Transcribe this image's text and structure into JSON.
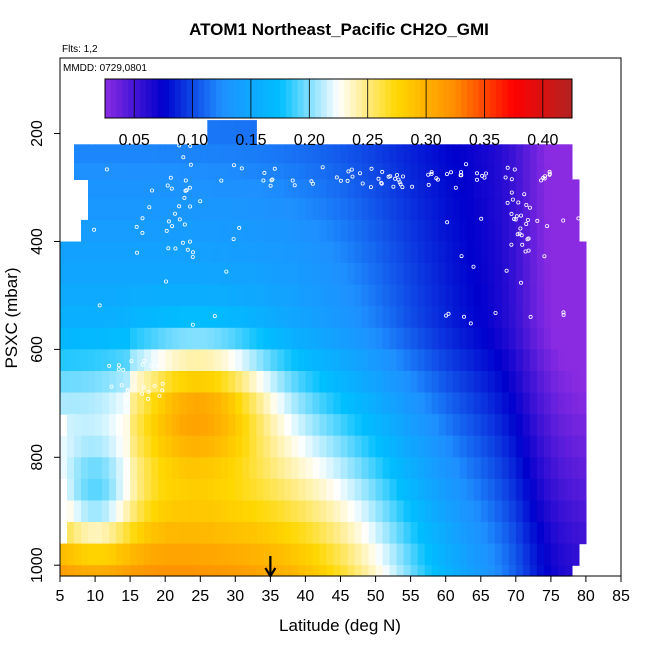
{
  "chart_data": {
    "type": "heatmap",
    "title": "ATOM1 Northeast_Pacific CH2O_GMI",
    "flights_label": "Flts: 1,2",
    "date_label": "MMDD: 0729,0801",
    "xlabel": "Latitude (deg N)",
    "ylabel": "PSXC (mbar)",
    "xlim": [
      5,
      85
    ],
    "ylim": [
      1020,
      60
    ],
    "y_reversed": true,
    "x_ticks": [
      "5",
      "10",
      "15",
      "20",
      "25",
      "30",
      "35",
      "40",
      "45",
      "50",
      "55",
      "60",
      "65",
      "70",
      "75",
      "80",
      "85"
    ],
    "y_ticks": [
      "200",
      "400",
      "600",
      "800",
      "1000"
    ],
    "colorbar": {
      "labels": [
        "0.05",
        "0.10",
        "0.15",
        "0.20",
        "0.25",
        "0.30",
        "0.35",
        "0.40"
      ],
      "vmin": 0.025,
      "vmax": 0.425,
      "colors": [
        "#8a2be2",
        "#0000cd",
        "#1e90ff",
        "#00bfff",
        "#ffffff",
        "#ffd700",
        "#ff8c00",
        "#ff0000",
        "#b22222"
      ]
    },
    "marker_latitude": 35,
    "colors": {
      "track_points": "#ffffff",
      "axis": "#000000"
    },
    "grid": false,
    "legend": "top colorbar"
  }
}
